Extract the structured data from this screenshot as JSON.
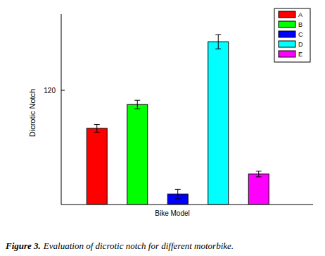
{
  "chart_data": {
    "type": "bar",
    "categories": [
      "A",
      "B",
      "C",
      "D",
      "E"
    ],
    "values": [
      80,
      105,
      11,
      171,
      32
    ],
    "errors": [
      4,
      4.5,
      5,
      7.5,
      3
    ],
    "colors": [
      "#ff0000",
      "#00ff00",
      "#0000ff",
      "#00ffff",
      "#ff00ff"
    ],
    "x_label": "Bike Model",
    "y_label": "Dicrotic Notch",
    "ylim": [
      0,
      200
    ],
    "yticks": [
      120
    ],
    "legend": "top-right",
    "tick_labels": "y",
    "grid": false,
    "caption_lead": "Figure 3.",
    "caption": "Evaluation of dicrotic notch for different motorbike."
  }
}
